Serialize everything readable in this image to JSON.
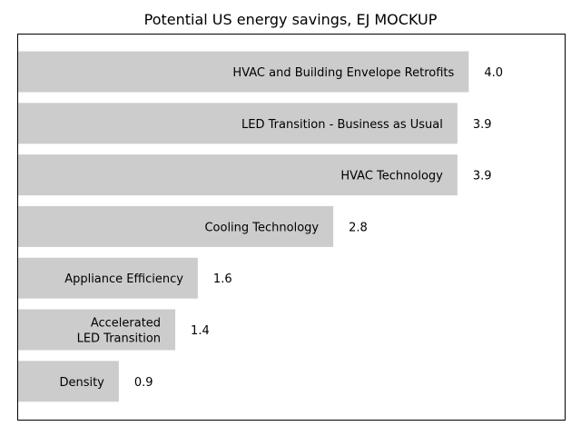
{
  "chart_data": {
    "type": "bar",
    "orientation": "horizontal",
    "title": "Potential US energy savings, EJ MOCKUP",
    "xlabel": "",
    "ylabel": "",
    "xlim": [
      0,
      4.85
    ],
    "grid": false,
    "bar_color": "#cccccc",
    "categories": [
      "HVAC and Building Envelope Retrofits",
      "LED Transition - Business as Usual",
      "HVAC Technology",
      "Cooling Technology",
      "Appliance Efficiency",
      "Accelerated\nLED Transition",
      "Density"
    ],
    "values": [
      4.0,
      3.9,
      3.9,
      2.8,
      1.6,
      1.4,
      0.9
    ],
    "value_labels": [
      "4.0",
      "3.9",
      "3.9",
      "2.8",
      "1.6",
      "1.4",
      "0.9"
    ]
  }
}
